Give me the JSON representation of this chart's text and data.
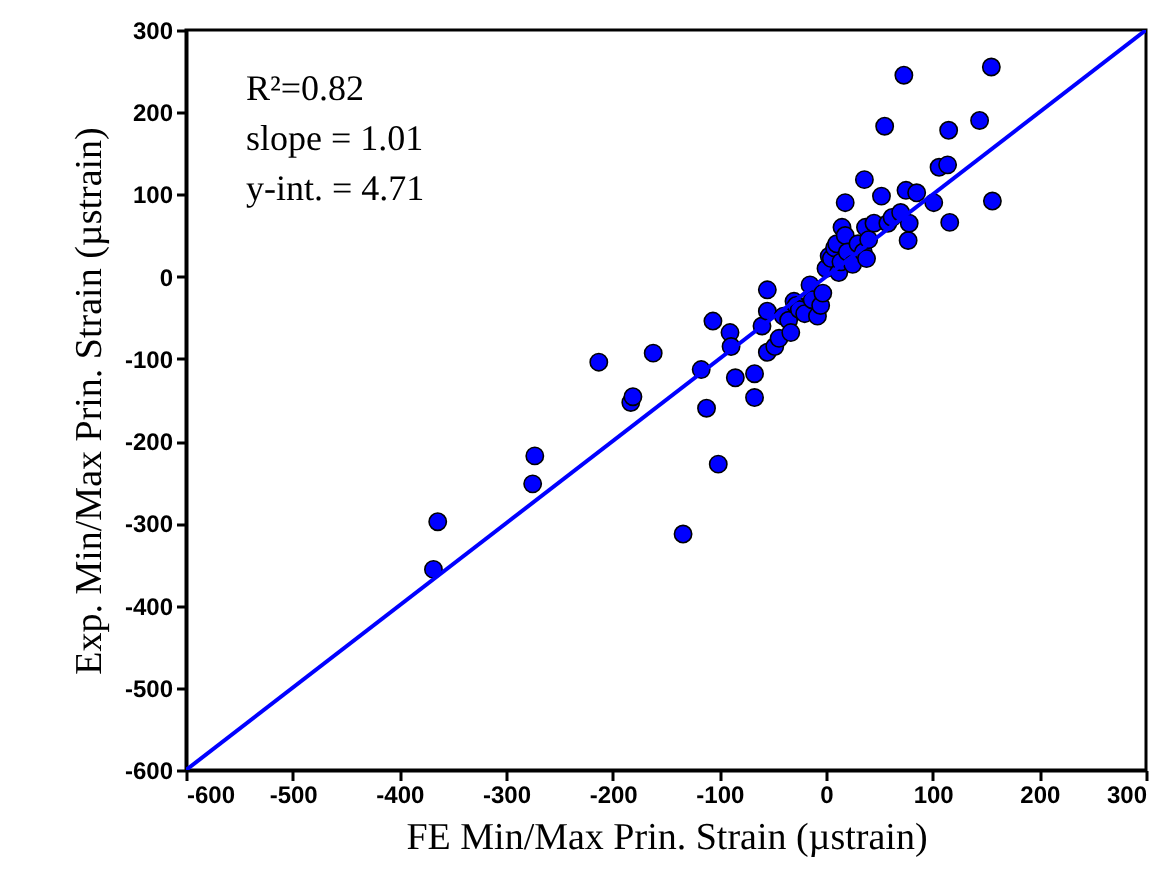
{
  "chart_data": {
    "type": "scatter",
    "xlabel": "FE Min/Max Prin. Strain (µstrain)",
    "ylabel": "Exp. Min/Max Prin. Strain (µstrain)",
    "xlim": [
      -600,
      300
    ],
    "ylim": [
      -600,
      300
    ],
    "xticks": [
      -600,
      -500,
      -400,
      -300,
      -200,
      -100,
      0,
      100,
      200,
      300
    ],
    "yticks": [
      -600,
      -500,
      -400,
      -300,
      -200,
      -100,
      0,
      100,
      200,
      300
    ],
    "grid": false,
    "annotations": [
      "R²=0.82",
      "slope = 1.01",
      "y-int. = 4.71"
    ],
    "series": [
      {
        "color": "#0000ff",
        "marker": "circle",
        "x": [
          -368,
          -364,
          -275,
          -273,
          -213,
          -183,
          -181,
          -162,
          -134,
          -117,
          -112,
          -106,
          -101,
          -90,
          -89,
          -85,
          -67,
          -67,
          -60,
          -55,
          -55,
          -55,
          -48,
          -44,
          -40,
          -35,
          -33,
          -30,
          -28,
          -25,
          -20,
          -15,
          -13,
          -8,
          -5,
          -3,
          0,
          3,
          5,
          8,
          10,
          12,
          14,
          15,
          18,
          18,
          20,
          25,
          30,
          35,
          36,
          37,
          38,
          40,
          45,
          52,
          55,
          58,
          62,
          70,
          73,
          75,
          77,
          78,
          85,
          101,
          106,
          114,
          115,
          116,
          144,
          155,
          156
        ],
        "values": [
          -356,
          -298,
          -252,
          -218,
          -104,
          -153,
          -146,
          -93,
          -313,
          -113,
          -160,
          -54,
          -228,
          -68,
          -85,
          -123,
          -118,
          -147,
          -60,
          -16,
          -42,
          -92,
          -85,
          -75,
          -48,
          -53,
          -68,
          -30,
          -35,
          -40,
          -45,
          -10,
          -28,
          -48,
          -35,
          -20,
          10,
          25,
          22,
          35,
          40,
          5,
          18,
          60,
          50,
          90,
          30,
          15,
          40,
          30,
          118,
          60,
          22,
          45,
          65,
          98,
          183,
          65,
          72,
          78,
          245,
          105,
          44,
          65,
          102,
          90,
          133,
          136,
          178,
          66,
          190,
          255,
          92
        ]
      },
      {
        "type": "line",
        "color": "#0000ff",
        "marker": "none",
        "x": [
          -600,
          300
        ],
        "values": [
          -600,
          300
        ]
      }
    ]
  }
}
